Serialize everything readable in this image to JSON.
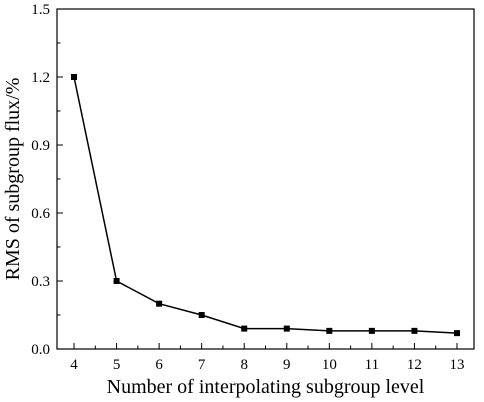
{
  "chart_data": {
    "type": "line",
    "title": "",
    "xlabel": "Number of interpolating subgroup level",
    "ylabel": "RMS of subgroup flux/%",
    "x": [
      4,
      5,
      6,
      7,
      8,
      9,
      10,
      11,
      12,
      13
    ],
    "xlim": [
      3.6,
      13.4
    ],
    "ylim": [
      0.0,
      1.5
    ],
    "yticks": [
      0.0,
      0.3,
      0.6,
      0.9,
      1.2,
      1.5
    ],
    "ytick_labels": [
      "0.0",
      "0.3",
      "0.6",
      "0.9",
      "1.2",
      "1.5"
    ],
    "xtick_labels": [
      "4",
      "5",
      "6",
      "7",
      "8",
      "9",
      "10",
      "11",
      "12",
      "13"
    ],
    "grid": false,
    "legend": "none",
    "series": [
      {
        "marker": "square",
        "color": "#000000",
        "values": [
          1.2,
          0.3,
          0.2,
          0.15,
          0.09,
          0.09,
          0.08,
          0.08,
          0.08,
          0.07
        ]
      }
    ]
  }
}
